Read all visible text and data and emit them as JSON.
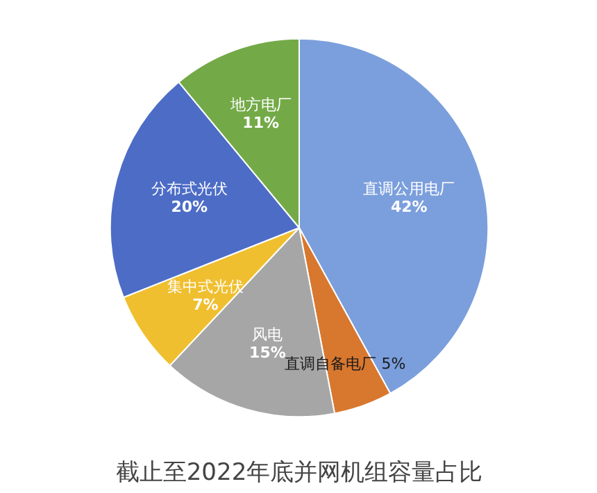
{
  "chart_data": {
    "type": "pie",
    "title": "截止至2022年底并网机组容量占比",
    "categories": [
      "直调公用电厂",
      "直调自备电厂",
      "风电",
      "集中式光伏",
      "分布式光伏",
      "地方电厂"
    ],
    "values": [
      42,
      5,
      15,
      7,
      20,
      11
    ],
    "value_labels": [
      "42%",
      "5%",
      "15%",
      "7%",
      "20%",
      "11%"
    ],
    "colors": [
      "#7b9fdc",
      "#d8772e",
      "#a6a6a6",
      "#f0bf2f",
      "#4c6cc6",
      "#73aa47"
    ]
  }
}
